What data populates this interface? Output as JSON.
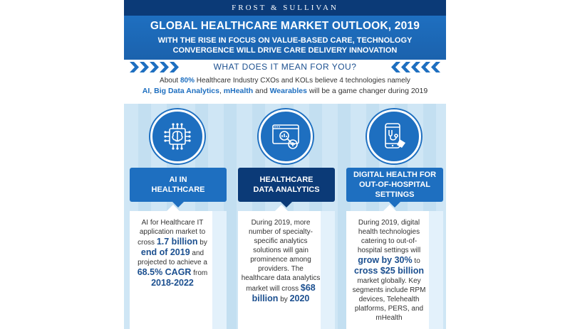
{
  "brand": "FROST & SULLIVAN",
  "header": {
    "title": "GLOBAL HEALTHCARE MARKET OUTLOOK, 2019",
    "subtitle_line1": "WITH THE RISE IN FOCUS ON VALUE-BASED CARE, TECHNOLOGY",
    "subtitle_line2": "CONVERGENCE WILL DRIVE CARE DELIVERY INNOVATION"
  },
  "question": "WHAT DOES IT MEAN FOR YOU?",
  "intro": {
    "prefix": "About ",
    "percent": "80%",
    "rest": " Healthcare Industry CXOs and KOLs believe 4 technologies namely",
    "tech1": "AI",
    "sep1": ", ",
    "tech2": "Big Data Analytics",
    "sep2": ", ",
    "tech3": "mHealth",
    "sep3": " and ",
    "tech4": "Wearables",
    "suffix": " will be a game changer during 2019"
  },
  "columns": [
    {
      "icon": "ai-chip-brain-icon",
      "label_line1": "AI IN",
      "label_line2": "HEALTHCARE",
      "t1": "AI for Healthcare IT application market to cross ",
      "h1": "1.7 billion",
      "t2": " by ",
      "h2": "end of 2019",
      "t3": " and projected to achieve a ",
      "h3": "68.5% CAGR",
      "t4": " from ",
      "h4": "2018-2022"
    },
    {
      "icon": "data-analytics-icon",
      "label_line1": "HEALTHCARE",
      "label_line2": "DATA ANALYTICS",
      "t1": "During 2019, more number of specialty-specific analytics solutions will gain prominence among providers. The healthcare data analytics market will cross ",
      "h1": "$68 billion",
      "t2": " by ",
      "h2": "2020"
    },
    {
      "icon": "mobile-health-icon",
      "label_line1": "DIGITAL HEALTH FOR",
      "label_line2": "OUT-OF-HOSPITAL SETTINGS",
      "t1": "During 2019, digital health technologies catering to out-of-hospital settings will ",
      "h1": "grow by 30%",
      "t2": " to ",
      "h2": "cross $25 billion",
      "t3": " market globally. Key segments include RPM devices, Telehealth platforms, PERS, and mHealth"
    }
  ],
  "colors": {
    "navy": "#0b3a77",
    "blue": "#1e6fc0",
    "panel": "#cfe6f5"
  }
}
